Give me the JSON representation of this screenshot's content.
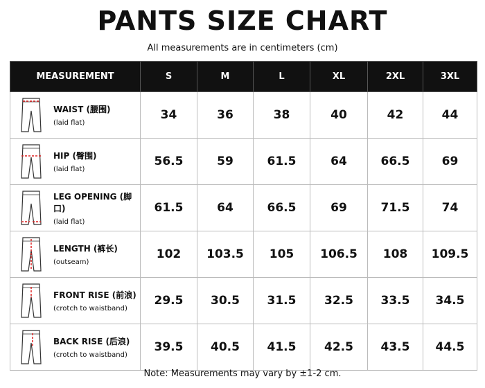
{
  "header": {
    "title": "PANTS SIZE CHART",
    "subtitle": "All measurements are in centimeters (cm)"
  },
  "table": {
    "columns": [
      "MEASUREMENT",
      "S",
      "M",
      "L",
      "XL",
      "2XL",
      "3XL"
    ],
    "rows": [
      {
        "label": "WAIST (腰围)",
        "note": "(laid flat)",
        "values": [
          34,
          36,
          38,
          40,
          42,
          44
        ]
      },
      {
        "label": "HIP (臀围)",
        "note": "(laid flat)",
        "values": [
          56.5,
          59,
          61.5,
          64,
          66.5,
          69
        ]
      },
      {
        "label": "LEG OPENING (脚口)",
        "note": "(laid flat)",
        "values": [
          61.5,
          64,
          66.5,
          69,
          71.5,
          74
        ]
      },
      {
        "label": "LENGTH (裤长)",
        "note": "(outseam)",
        "values": [
          102,
          103.5,
          105,
          106.5,
          108,
          109.5
        ]
      },
      {
        "label": "FRONT RISE (前浪)",
        "note": "(crotch to waistband)",
        "values": [
          29.5,
          30.5,
          31.5,
          32.5,
          33.5,
          34.5
        ]
      },
      {
        "label": "BACK RISE (后浪)",
        "note": "(crotch to waistband)",
        "values": [
          39.5,
          40.5,
          41.5,
          42.5,
          43.5,
          44.5
        ]
      }
    ]
  },
  "footer": {
    "note": "Note: Measurements may vary by ±1-2 cm."
  }
}
